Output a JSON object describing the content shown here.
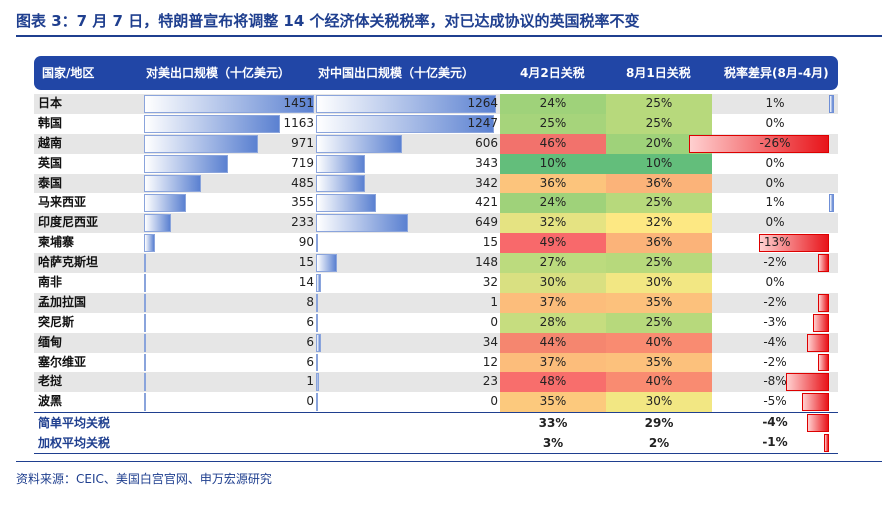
{
  "figure_title": "图表 3：7 月 7 日，特朗普宣布将调整 14 个经济体关税税率，对已达成协议的英国税率不变",
  "source": "资料来源：CEIC、美国白宫官网、申万宏源研究",
  "chart_data": {
    "type": "table",
    "columns": [
      "国家/地区",
      "对美出口规模（十亿美元）",
      "对中国出口规模（十亿美元）",
      "4月2日关税",
      "8月1日关税",
      "税率差异(8月-4月)"
    ],
    "rows": [
      {
        "name": "日本",
        "us_export": 1451,
        "cn_export": 1264,
        "apr": "24%",
        "aug": "25%",
        "diff": "1%",
        "diff_val": 1,
        "apr_color": "#9fd27a",
        "aug_color": "#b7d97c"
      },
      {
        "name": "韩国",
        "us_export": 1163,
        "cn_export": 1247,
        "apr": "25%",
        "aug": "25%",
        "diff": "0%",
        "diff_val": 0,
        "apr_color": "#a6d47b",
        "aug_color": "#b7d97c"
      },
      {
        "name": "越南",
        "us_export": 971,
        "cn_export": 606,
        "apr": "46%",
        "aug": "20%",
        "diff": "-26%",
        "diff_val": -26,
        "apr_color": "#f2726c",
        "aug_color": "#9fd27a"
      },
      {
        "name": "英国",
        "us_export": 719,
        "cn_export": 343,
        "apr": "10%",
        "aug": "10%",
        "diff": "0%",
        "diff_val": 0,
        "apr_color": "#63be7b",
        "aug_color": "#63be7b"
      },
      {
        "name": "泰国",
        "us_export": 485,
        "cn_export": 342,
        "apr": "36%",
        "aug": "36%",
        "diff": "0%",
        "diff_val": 0,
        "apr_color": "#fcc47c",
        "aug_color": "#fbb379"
      },
      {
        "name": "马来西亚",
        "us_export": 355,
        "cn_export": 421,
        "apr": "24%",
        "aug": "25%",
        "diff": "1%",
        "diff_val": 1,
        "apr_color": "#9fd27a",
        "aug_color": "#b7d97c"
      },
      {
        "name": "印度尼西亚",
        "us_export": 233,
        "cn_export": 649,
        "apr": "32%",
        "aug": "32%",
        "diff": "0%",
        "diff_val": 0,
        "apr_color": "#e5e382",
        "aug_color": "#fde883"
      },
      {
        "name": "柬埔寨",
        "us_export": 90,
        "cn_export": 15,
        "apr": "49%",
        "aug": "36%",
        "diff": "-13%",
        "diff_val": -13,
        "apr_color": "#f8696b",
        "aug_color": "#fbb379"
      },
      {
        "name": "哈萨克斯坦",
        "us_export": 15,
        "cn_export": 148,
        "apr": "27%",
        "aug": "25%",
        "diff": "-2%",
        "diff_val": -2,
        "apr_color": "#bcdb7e",
        "aug_color": "#b7d97c"
      },
      {
        "name": "南非",
        "us_export": 14,
        "cn_export": 32,
        "apr": "30%",
        "aug": "30%",
        "diff": "0%",
        "diff_val": 0,
        "apr_color": "#d9e081",
        "aug_color": "#f2e783"
      },
      {
        "name": "孟加拉国",
        "us_export": 8,
        "cn_export": 1,
        "apr": "37%",
        "aug": "35%",
        "diff": "-2%",
        "diff_val": -2,
        "apr_color": "#fcbd7b",
        "aug_color": "#fcc17c"
      },
      {
        "name": "突尼斯",
        "us_export": 6,
        "cn_export": 0,
        "apr": "28%",
        "aug": "25%",
        "diff": "-3%",
        "diff_val": -3,
        "apr_color": "#c6dd7f",
        "aug_color": "#b7d97c"
      },
      {
        "name": "缅甸",
        "us_export": 6,
        "cn_export": 34,
        "apr": "44%",
        "aug": "40%",
        "diff": "-4%",
        "diff_val": -4,
        "apr_color": "#f5866f",
        "aug_color": "#f98b71"
      },
      {
        "name": "塞尔维亚",
        "us_export": 6,
        "cn_export": 12,
        "apr": "37%",
        "aug": "35%",
        "diff": "-2%",
        "diff_val": -2,
        "apr_color": "#fcbd7b",
        "aug_color": "#fcc17c"
      },
      {
        "name": "老挝",
        "us_export": 1,
        "cn_export": 23,
        "apr": "48%",
        "aug": "40%",
        "diff": "-8%",
        "diff_val": -8,
        "apr_color": "#f86e6c",
        "aug_color": "#f98b71"
      },
      {
        "name": "波黑",
        "us_export": 0,
        "cn_export": 0,
        "apr": "35%",
        "aug": "30%",
        "diff": "-5%",
        "diff_val": -5,
        "apr_color": "#fcc97d",
        "aug_color": "#f2e783"
      }
    ],
    "summary": [
      {
        "name": "简单平均关税",
        "apr": "33%",
        "aug": "29%",
        "diff": "-4%",
        "diff_val": -4
      },
      {
        "name": "加权平均关税",
        "apr": "3%",
        "aug": "2%",
        "diff": "-1%",
        "diff_val": -1
      }
    ],
    "us_export_max": 1451,
    "cn_export_max": 1264,
    "diff_range": [
      -26,
      1
    ]
  }
}
